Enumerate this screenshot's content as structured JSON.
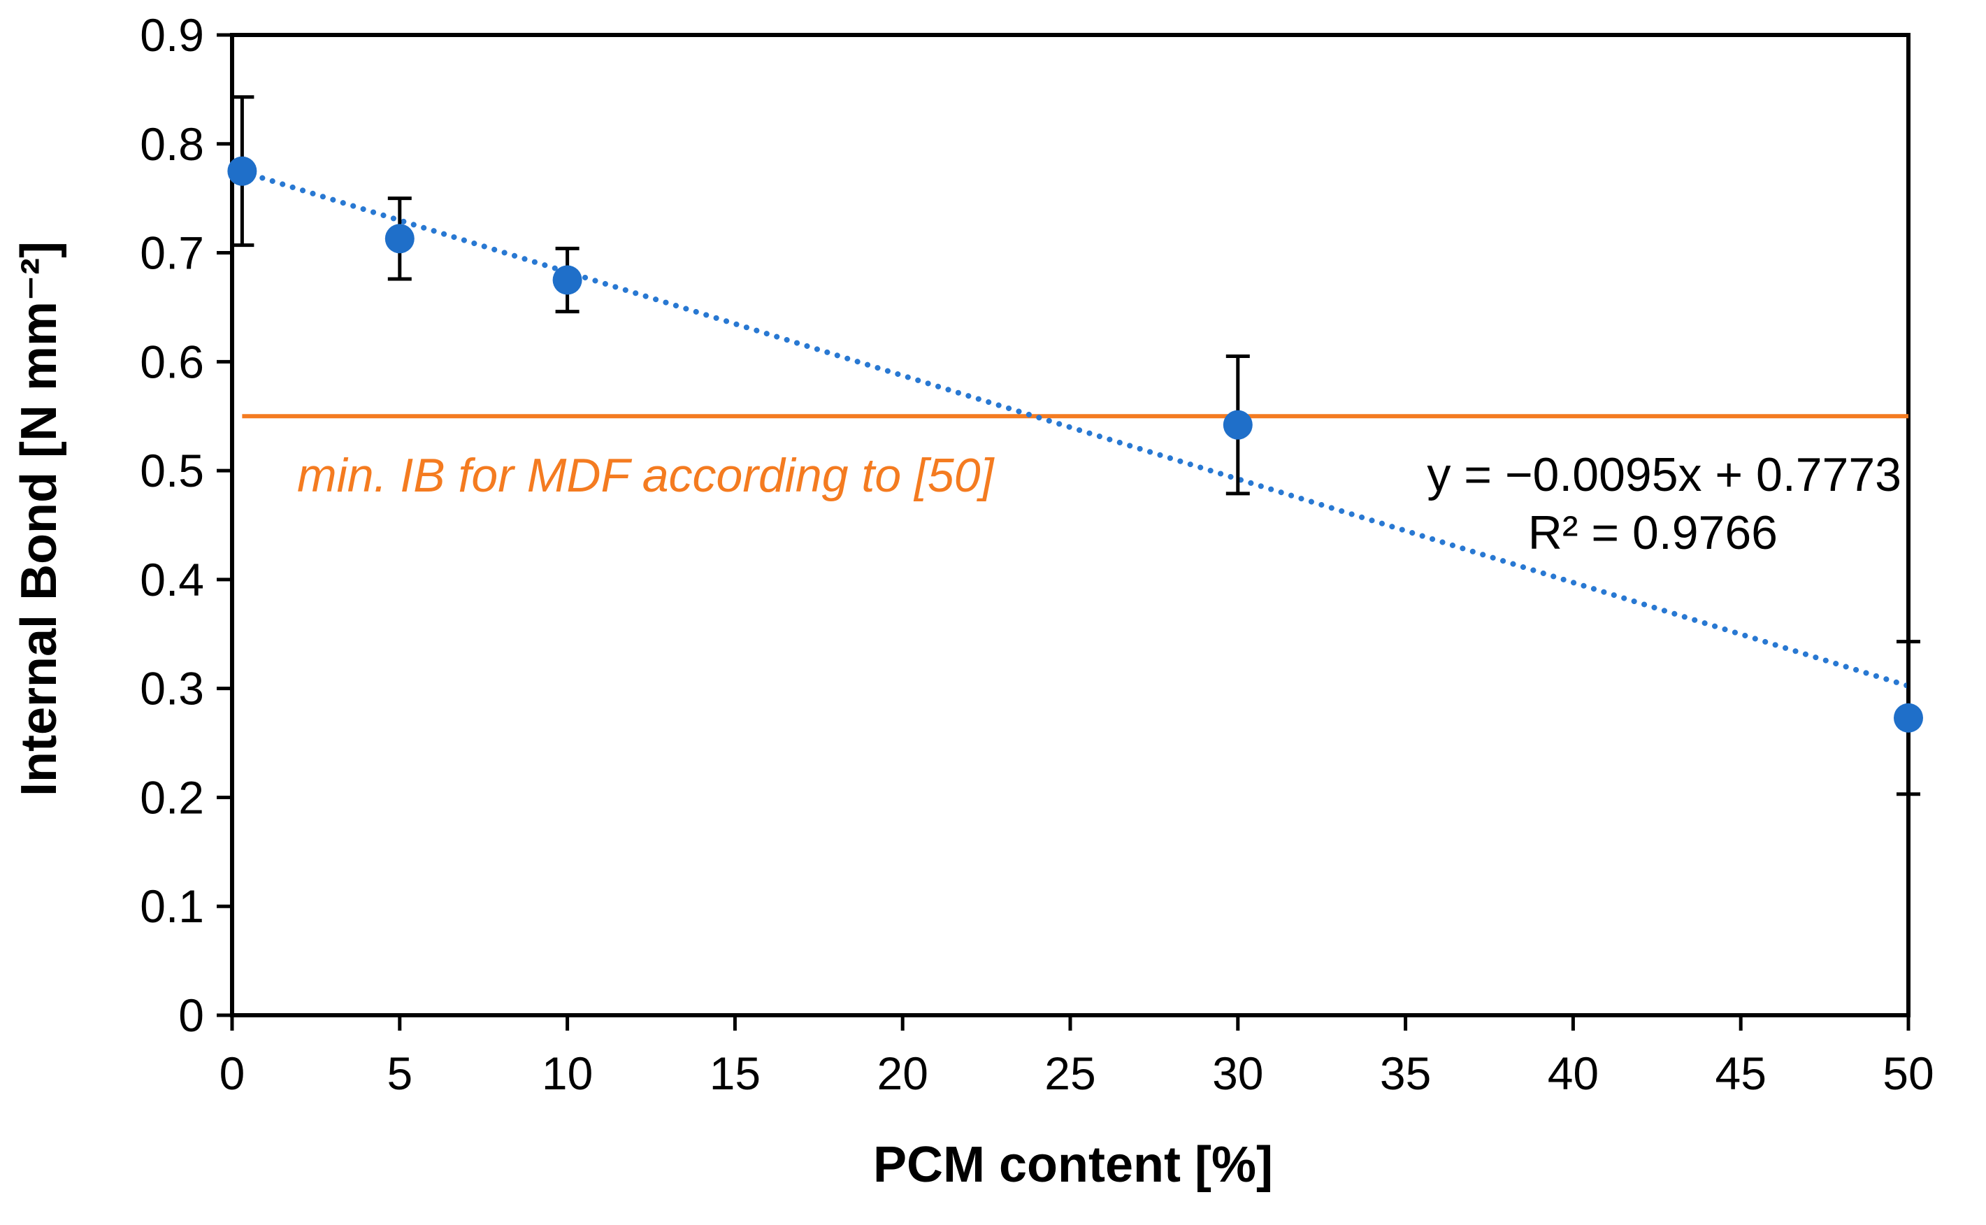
{
  "chart_data": {
    "type": "scatter",
    "title": "",
    "xlabel": "PCM content [%]",
    "ylabel": "Internal Bond [N mm⁻²]",
    "xlim": [
      0,
      50
    ],
    "ylim": [
      0,
      0.9
    ],
    "x_ticks": [
      0,
      5,
      10,
      15,
      20,
      25,
      30,
      35,
      40,
      45,
      50
    ],
    "y_ticks": [
      0,
      0.1,
      0.2,
      0.3,
      0.4,
      0.5,
      0.6,
      0.7,
      0.8,
      0.9
    ],
    "x_tick_labels": [
      "0",
      "5",
      "10",
      "15",
      "20",
      "25",
      "30",
      "35",
      "40",
      "45",
      "50"
    ],
    "y_tick_labels": [
      "0",
      "0.1",
      "0.2",
      "0.3",
      "0.4",
      "0.5",
      "0.6",
      "0.7",
      "0.8",
      "0.9"
    ],
    "grid": false,
    "series": [
      {
        "name": "Internal Bond",
        "color": "#1f6fc9",
        "x": [
          0.3,
          5,
          10,
          30,
          50
        ],
        "y": [
          0.775,
          0.713,
          0.675,
          0.542,
          0.273
        ],
        "error": [
          0.068,
          0.037,
          0.029,
          0.063,
          0.07
        ]
      }
    ],
    "trendline": {
      "type": "linear",
      "slope": -0.0095,
      "intercept": 0.7773,
      "x_range": [
        0,
        50
      ],
      "color": "#2878d2",
      "equation": "y = −0.0095x + 0.7773",
      "r_squared": "R² = 0.9766"
    },
    "reference_line": {
      "y": 0.55,
      "x_range": [
        0.3,
        50
      ],
      "color": "#f47b20",
      "label": "min. IB for MDF according to [50]"
    },
    "error_bar_color": "#000000",
    "axis_color": "#000000"
  }
}
